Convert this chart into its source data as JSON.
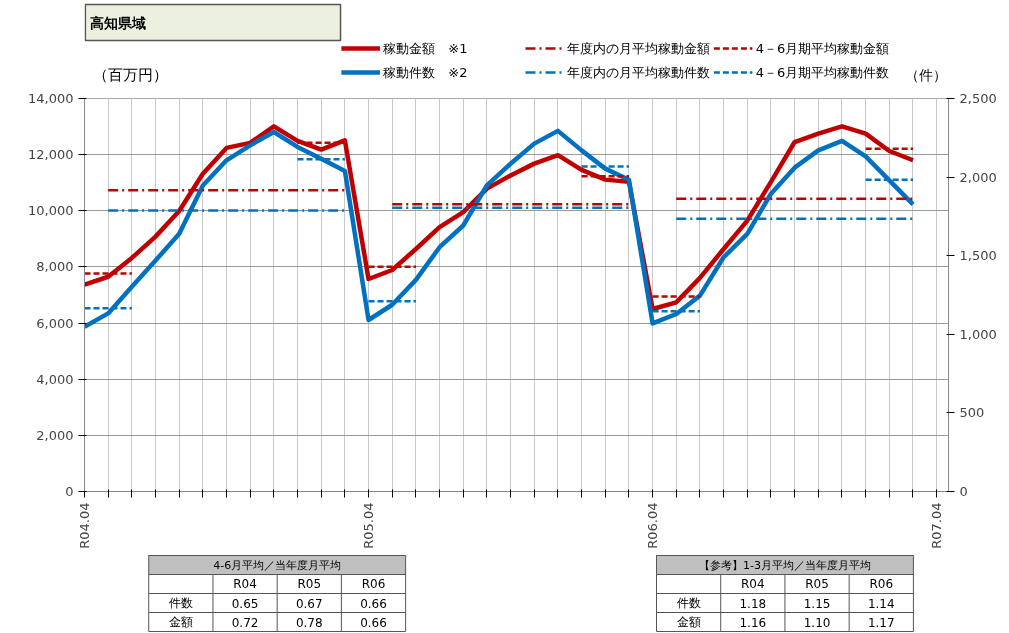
{
  "chart_data": {
    "type": "line",
    "title": "高知県域",
    "ylabel": "（百万円）",
    "y2label": "（件）",
    "categories": [
      "R04.04",
      null,
      null,
      null,
      null,
      null,
      null,
      null,
      null,
      null,
      null,
      null,
      "R05.04",
      null,
      null,
      null,
      null,
      null,
      null,
      null,
      null,
      null,
      null,
      null,
      "R06.04",
      null,
      null,
      null,
      null,
      null,
      null,
      null,
      null,
      null,
      null,
      null,
      "R07.04"
    ],
    "ylim": [
      0,
      14000
    ],
    "yticks": [
      {
        "value": 0,
        "label": "0"
      },
      {
        "value": 2000,
        "label": "2,000"
      },
      {
        "value": 4000,
        "label": "4,000"
      },
      {
        "value": 6000,
        "label": "6,000"
      },
      {
        "value": 8000,
        "label": "8,000"
      },
      {
        "value": 10000,
        "label": "10,000"
      },
      {
        "value": 12000,
        "label": "12,000"
      },
      {
        "value": 14000,
        "label": "14,000"
      }
    ],
    "y2lim": [
      0,
      2500
    ],
    "y2ticks": [
      {
        "value": 0,
        "label": "0"
      },
      {
        "value": 500,
        "label": "500"
      },
      {
        "value": 1000,
        "label": "1,000"
      },
      {
        "value": 1500,
        "label": "1,500"
      },
      {
        "value": 2000,
        "label": "2,000"
      },
      {
        "value": 2500,
        "label": "2,500"
      }
    ],
    "grid": true,
    "legend": "top",
    "marker": "none",
    "series": [
      {
        "name": "稼動金額　※1",
        "color": "#c00000",
        "line_style": "solid",
        "values": [
          7370,
          7650,
          8320,
          9080,
          9990,
          11320,
          12240,
          12420,
          13010,
          12490,
          12180,
          12510,
          7570,
          7890,
          8640,
          9420,
          9950,
          10790,
          11260,
          11680,
          11980,
          11460,
          11110,
          11030,
          6500,
          6740,
          7610,
          8640,
          9650,
          11030,
          12450,
          12750,
          13010,
          12750,
          12130,
          11800,
          null
        ]
      },
      {
        "name": "稼動件数　※2",
        "color": "#0070c0",
        "line_style": "solid",
        "axis": "y2",
        "values": [
          1048,
          1133,
          1303,
          1469,
          1639,
          1947,
          2107,
          2202,
          2287,
          2192,
          2117,
          2039,
          1091,
          1188,
          1346,
          1554,
          1692,
          1947,
          2085,
          2213,
          2294,
          2170,
          2054,
          1983,
          1069,
          1129,
          1246,
          1490,
          1639,
          1894,
          2060,
          2170,
          2230,
          2132,
          1979,
          1826,
          null
        ]
      },
      {
        "name": "年度内の月平均稼動金額",
        "color": "#c00000",
        "line_style": "dashdot",
        "values": [
          null,
          10730,
          10730,
          10730,
          10730,
          10730,
          10730,
          10730,
          10730,
          10730,
          10730,
          10730,
          null,
          10230,
          10230,
          10230,
          10230,
          10230,
          10230,
          10230,
          10230,
          10230,
          10230,
          10230,
          null,
          10430,
          10430,
          10430,
          10430,
          10430,
          10430,
          10430,
          10430,
          10430,
          10430,
          10430,
          null
        ]
      },
      {
        "name": "年度内の月平均稼動件数",
        "color": "#0070c0",
        "line_style": "dashdot",
        "axis": "y2",
        "values": [
          null,
          1788,
          1788,
          1788,
          1788,
          1788,
          1788,
          1788,
          1788,
          1788,
          1788,
          1788,
          null,
          1805,
          1805,
          1805,
          1805,
          1805,
          1805,
          1805,
          1805,
          1805,
          1805,
          1805,
          null,
          1735,
          1735,
          1735,
          1735,
          1735,
          1735,
          1735,
          1735,
          1735,
          1735,
          1735,
          null
        ]
      },
      {
        "name": "4－6月期平均稼動金額",
        "color": "#c00000",
        "line_style": "dashed",
        "values": [
          7770,
          7770,
          7770,
          null,
          null,
          null,
          null,
          null,
          null,
          null,
          null,
          null,
          8010,
          8010,
          8010,
          null,
          null,
          null,
          null,
          null,
          null,
          null,
          null,
          null,
          6950,
          6950,
          6950,
          null,
          null,
          null,
          null,
          null,
          null,
          null,
          null,
          null,
          null
        ]
      },
      {
        "name": "4－6月期平均稼動件数",
        "color": "#0070c0",
        "line_style": "dashed",
        "axis": "y2",
        "values": [
          1165,
          1165,
          1165,
          null,
          null,
          null,
          null,
          null,
          null,
          null,
          null,
          null,
          1210,
          1210,
          1210,
          null,
          null,
          null,
          null,
          null,
          null,
          null,
          null,
          null,
          1146,
          1146,
          1146,
          null,
          null,
          null,
          null,
          null,
          null,
          null,
          null,
          null,
          null
        ]
      },
      {
        "color": "#c00000",
        "line_style": "dashed",
        "values": [
          null,
          null,
          null,
          null,
          null,
          null,
          null,
          null,
          null,
          12420,
          12420,
          12420,
          null,
          null,
          null,
          null,
          null,
          null,
          null,
          null,
          null,
          11230,
          11230,
          11230,
          null,
          null,
          null,
          null,
          null,
          null,
          null,
          null,
          null,
          12210,
          12210,
          12210,
          null
        ]
      },
      {
        "color": "#0070c0",
        "line_style": "dashed",
        "axis": "y2",
        "values": [
          null,
          null,
          null,
          null,
          null,
          null,
          null,
          null,
          null,
          2113,
          2113,
          2113,
          null,
          null,
          null,
          null,
          null,
          null,
          null,
          null,
          null,
          2068,
          2068,
          2068,
          null,
          null,
          null,
          null,
          null,
          null,
          null,
          null,
          null,
          1983,
          1983,
          1983,
          null
        ]
      }
    ],
    "annotations": [
      "4-6月平均／当年度月平均",
      "R04",
      "R05",
      "R06",
      "件数",
      "0.65",
      "0.67",
      "0.66",
      "金額",
      "0.72",
      "0.78",
      "0.66",
      "【参考】1-3月平均／当年度月平均",
      "R04",
      "R05",
      "R06",
      "件数",
      "1.18",
      "1.15",
      "1.14",
      "金額",
      "1.16",
      "1.10",
      "1.17"
    ]
  }
}
